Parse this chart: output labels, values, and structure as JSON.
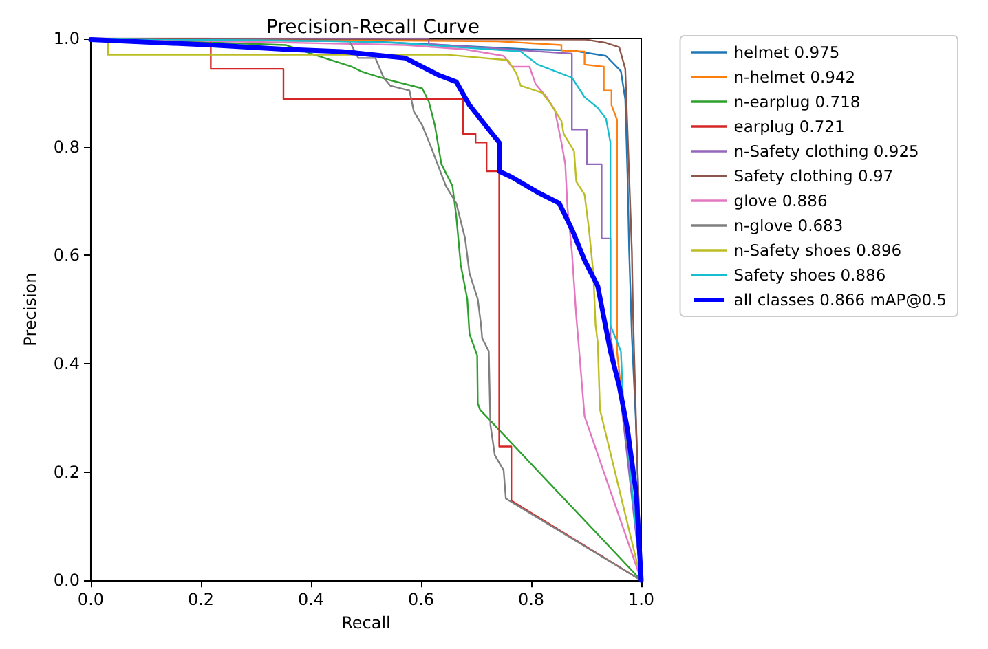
{
  "chart_data": {
    "type": "line",
    "title": "Precision-Recall Curve",
    "xlabel": "Recall",
    "ylabel": "Precision",
    "xlim": [
      0,
      1
    ],
    "ylim": [
      0,
      1
    ],
    "xticks": [
      {
        "value": 0,
        "label": "0.0"
      },
      0.2,
      0.4,
      0.6,
      0.8,
      {
        "value": 1,
        "label": "1.0"
      }
    ],
    "yticks": [
      {
        "value": 0,
        "label": "0.0"
      },
      0.2,
      0.4,
      0.6,
      0.8,
      {
        "value": 1,
        "label": "1.0"
      }
    ],
    "grid": false,
    "legend": "right",
    "marker": "none",
    "line_style": "solid",
    "series": [
      {
        "name": "helmet 0.975",
        "color": "#1f77b4",
        "x": [
          0,
          0.5,
          0.796,
          0.874,
          0.936,
          0.963,
          0.971,
          0.975,
          0.978,
          0.983,
          0.99,
          1
        ],
        "values": [
          1,
          0.995,
          0.98,
          0.978,
          0.968,
          0.94,
          0.888,
          0.75,
          0.61,
          0.45,
          0.3,
          0
        ]
      },
      {
        "name": "n-helmet 0.942",
        "color": "#ff7f0e",
        "x": [
          0,
          0.738,
          0.855,
          0.855,
          0.897,
          0.897,
          0.932,
          0.932,
          0.946,
          0.946,
          0.956,
          0.956,
          1
        ],
        "values": [
          1,
          0.995,
          0.988,
          0.978,
          0.976,
          0.952,
          0.948,
          0.904,
          0.904,
          0.877,
          0.85,
          0.423,
          0
        ]
      },
      {
        "name": "n-earplug 0.718",
        "color": "#2ca02c",
        "x": [
          0,
          0.354,
          0.412,
          0.474,
          0.49,
          0.501,
          0.54,
          0.602,
          0.614,
          0.625,
          0.637,
          0.657,
          0.664,
          0.672,
          0.684,
          0.688,
          0.702,
          0.703,
          0.707,
          1
        ],
        "values": [
          1,
          0.988,
          0.968,
          0.948,
          0.94,
          0.936,
          0.924,
          0.908,
          0.884,
          0.84,
          0.768,
          0.728,
          0.672,
          0.583,
          0.519,
          0.455,
          0.415,
          0.327,
          0.315,
          0
        ]
      },
      {
        "name": "earplug 0.721",
        "color": "#d62728",
        "x": [
          0,
          0.218,
          0.218,
          0.35,
          0.35,
          0.676,
          0.676,
          0.699,
          0.699,
          0.719,
          0.719,
          0.742,
          0.742,
          0.764,
          0.764,
          1
        ],
        "values": [
          1,
          1,
          0.944,
          0.944,
          0.888,
          0.888,
          0.824,
          0.824,
          0.808,
          0.808,
          0.755,
          0.755,
          0.247,
          0.247,
          0.147,
          0
        ]
      },
      {
        "name": "n-Safety clothing 0.925",
        "color": "#9467bd",
        "x": [
          0,
          0.614,
          0.614,
          0.874,
          0.874,
          0.901,
          0.901,
          0.928,
          0.928,
          0.944,
          0.944,
          0.96,
          1
        ],
        "values": [
          1,
          1,
          0.99,
          0.972,
          0.832,
          0.832,
          0.768,
          0.768,
          0.631,
          0.631,
          0.45,
          0.36,
          0
        ]
      },
      {
        "name": "Safety clothing 0.97",
        "color": "#8c564b",
        "x": [
          0,
          0.9,
          0.936,
          0.96,
          0.971,
          0.975,
          0.983,
          0.985,
          0.991,
          1
        ],
        "values": [
          1,
          0.998,
          0.992,
          0.984,
          0.944,
          0.832,
          0.607,
          0.495,
          0.279,
          0
        ]
      },
      {
        "name": "glove 0.886",
        "color": "#e377c2",
        "x": [
          0,
          0.571,
          0.68,
          0.75,
          0.765,
          0.797,
          0.808,
          0.828,
          0.843,
          0.855,
          0.862,
          0.866,
          0.874,
          0.882,
          0.886,
          0.897,
          1
        ],
        "values": [
          1,
          0.988,
          0.98,
          0.968,
          0.948,
          0.948,
          0.916,
          0.892,
          0.868,
          0.808,
          0.768,
          0.688,
          0.607,
          0.487,
          0.439,
          0.303,
          0
        ]
      },
      {
        "name": "n-glove 0.683",
        "color": "#7f7f7f",
        "x": [
          0,
          0.47,
          0.486,
          0.517,
          0.532,
          0.544,
          0.579,
          0.587,
          0.602,
          0.618,
          0.633,
          0.645,
          0.664,
          0.68,
          0.688,
          0.703,
          0.709,
          0.711,
          0.723,
          0.726,
          0.734,
          0.75,
          0.754,
          1
        ],
        "values": [
          1,
          0.995,
          0.964,
          0.964,
          0.928,
          0.913,
          0.904,
          0.865,
          0.84,
          0.8,
          0.76,
          0.728,
          0.696,
          0.631,
          0.567,
          0.519,
          0.471,
          0.447,
          0.423,
          0.287,
          0.231,
          0.203,
          0.151,
          0
        ]
      },
      {
        "name": "n-Safety shoes 0.896",
        "color": "#bcbd22",
        "x": [
          0,
          0.031,
          0.031,
          0.648,
          0.758,
          0.773,
          0.781,
          0.82,
          0.835,
          0.855,
          0.859,
          0.878,
          0.882,
          0.897,
          0.905,
          0.913,
          0.917,
          0.921,
          0.925,
          1
        ],
        "values": [
          1,
          1,
          0.97,
          0.97,
          0.96,
          0.936,
          0.913,
          0.9,
          0.88,
          0.848,
          0.824,
          0.792,
          0.736,
          0.712,
          0.648,
          0.567,
          0.471,
          0.439,
          0.315,
          0
        ]
      },
      {
        "name": "Safety shoes 0.886",
        "color": "#17becf",
        "x": [
          0,
          0.45,
          0.556,
          0.781,
          0.812,
          0.874,
          0.897,
          0.921,
          0.936,
          0.944,
          0.944,
          0.963,
          0.967,
          1
        ],
        "values": [
          1,
          0.995,
          0.992,
          0.976,
          0.952,
          0.928,
          0.892,
          0.872,
          0.852,
          0.808,
          0.471,
          0.423,
          0.335,
          0
        ]
      },
      {
        "name": "all classes 0.866 mAP@0.5",
        "color": "#0000ff",
        "x": [
          0,
          0.22,
          0.354,
          0.455,
          0.571,
          0.633,
          0.664,
          0.688,
          0.723,
          0.742,
          0.742,
          0.765,
          0.812,
          0.851,
          0.874,
          0.897,
          0.921,
          0.944,
          0.96,
          0.975,
          0.991,
          1
        ],
        "values": [
          0.998,
          0.988,
          0.98,
          0.976,
          0.964,
          0.932,
          0.92,
          0.877,
          0.832,
          0.808,
          0.755,
          0.744,
          0.716,
          0.696,
          0.648,
          0.591,
          0.543,
          0.423,
          0.359,
          0.279,
          0.159,
          0
        ]
      }
    ]
  }
}
